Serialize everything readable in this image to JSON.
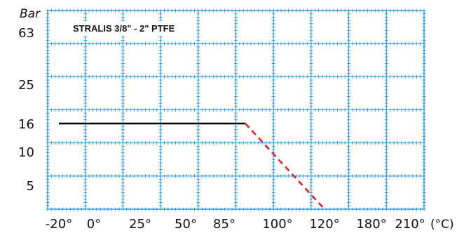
{
  "chart_data": {
    "type": "line",
    "title": "STRALIS 3/8\" - 2\" PTFE",
    "ylabel": "Bar",
    "xlabel_unit": "(°C)",
    "x_tick_labels": [
      "-20°",
      "0°",
      "25°",
      "50°",
      "85°",
      "100°",
      "120°",
      "180°",
      "210°"
    ],
    "y_tick_labels": [
      "63",
      "25",
      "16",
      "10",
      "5"
    ],
    "grid": true,
    "colors": {
      "grid": "#1a8fd8",
      "line": "#000000",
      "dashed": "#e0202a"
    },
    "series": [
      {
        "style": "solid",
        "color": "#000000",
        "points": [
          {
            "x": "-20°",
            "y": 16
          },
          {
            "x": "90°",
            "y": 16
          }
        ]
      },
      {
        "style": "dashed",
        "color": "#e0202a",
        "points": [
          {
            "x": "90°",
            "y": 16
          },
          {
            "x": "120°",
            "y": 0
          }
        ]
      }
    ]
  }
}
